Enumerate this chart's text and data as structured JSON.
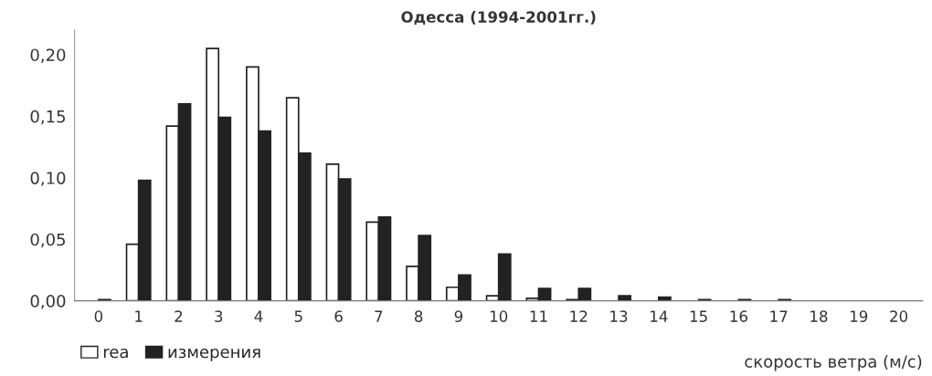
{
  "chart_data": {
    "type": "bar",
    "title": "Одесса (1994-2001гг.)",
    "xlabel": "скорость ветра (м/с)",
    "categories": [
      "0",
      "1",
      "2",
      "3",
      "4",
      "5",
      "6",
      "7",
      "8",
      "9",
      "10",
      "11",
      "12",
      "13",
      "14",
      "15",
      "16",
      "17",
      "18",
      "19",
      "20"
    ],
    "series": [
      {
        "name": "rea",
        "color": "#ffffff",
        "values": [
          0,
          0.046,
          0.142,
          0.205,
          0.19,
          0.165,
          0.111,
          0.064,
          0.028,
          0.011,
          0.004,
          0.002,
          0.001,
          0,
          0,
          0,
          0,
          0,
          0,
          0,
          0
        ]
      },
      {
        "name": "измерения",
        "color": "#222222",
        "values": [
          0.001,
          0.098,
          0.16,
          0.149,
          0.138,
          0.12,
          0.099,
          0.068,
          0.053,
          0.021,
          0.038,
          0.01,
          0.01,
          0.004,
          0.003,
          0.001,
          0.001,
          0.001,
          0,
          0,
          0
        ]
      }
    ],
    "ylim": [
      0,
      0.22
    ],
    "yticks": [
      {
        "value": 0,
        "label": "0,00"
      },
      {
        "value": 0.05,
        "label": "0,05"
      },
      {
        "value": 0.1,
        "label": "0,10"
      },
      {
        "value": 0.15,
        "label": "0,15"
      },
      {
        "value": 0.2,
        "label": "0,20"
      }
    ],
    "grid": false,
    "legend": "bottom left"
  }
}
